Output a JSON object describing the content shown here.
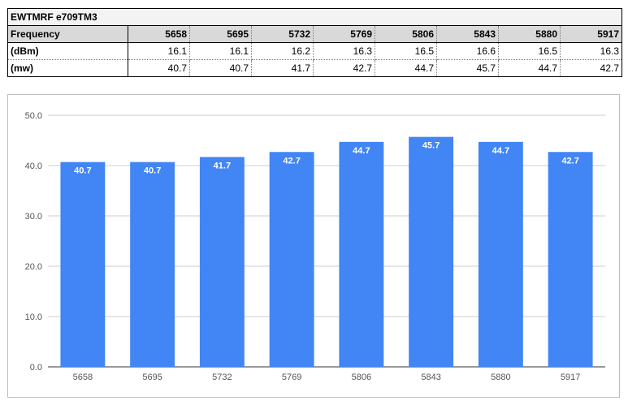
{
  "table": {
    "title": "EWTMRF e709TM3",
    "rows": [
      {
        "label": "Frequency",
        "values": [
          "5658",
          "5695",
          "5732",
          "5769",
          "5806",
          "5843",
          "5880",
          "5917"
        ]
      },
      {
        "label": "(dBm)",
        "values": [
          "16.1",
          "16.1",
          "16.2",
          "16.3",
          "16.5",
          "16.6",
          "16.5",
          "16.3"
        ]
      },
      {
        "label": "(mw)",
        "values": [
          "40.7",
          "40.7",
          "41.7",
          "42.7",
          "44.7",
          "45.7",
          "44.7",
          "42.7"
        ]
      }
    ]
  },
  "chart_data": {
    "type": "bar",
    "categories": [
      "5658",
      "5695",
      "5732",
      "5769",
      "5806",
      "5843",
      "5880",
      "5917"
    ],
    "values": [
      40.7,
      40.7,
      41.7,
      42.7,
      44.7,
      45.7,
      44.7,
      42.7
    ],
    "data_labels": [
      "40.7",
      "40.7",
      "41.7",
      "42.7",
      "44.7",
      "45.7",
      "44.7",
      "42.7"
    ],
    "title": "",
    "xlabel": "",
    "ylabel": "",
    "ylim": [
      0,
      50
    ],
    "yticks": [
      "0.0",
      "10.0",
      "20.0",
      "30.0",
      "40.0",
      "50.0"
    ],
    "grid": true,
    "legend": "none",
    "bar_color": "#4285f4"
  }
}
